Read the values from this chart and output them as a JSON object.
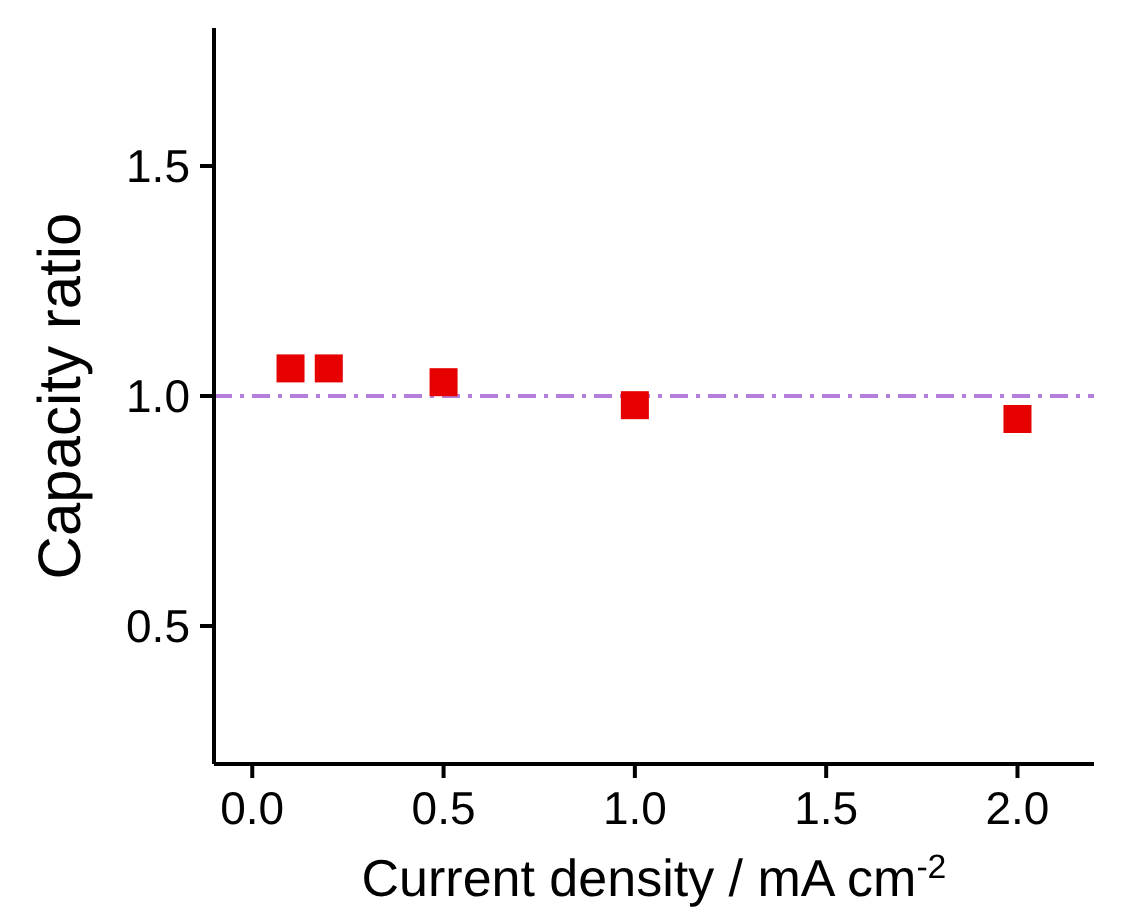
{
  "chart_data": {
    "type": "scatter",
    "xlabel": "Current density / mA cm$^{-2}$",
    "ylabel": "Capacity ratio",
    "x": [
      0.1,
      0.2,
      0.5,
      1.0,
      2.0
    ],
    "series": [
      {
        "color": "#e60000",
        "values": [
          1.06,
          1.06,
          1.03,
          0.98,
          0.95
        ]
      }
    ],
    "marker": "square",
    "xlim": [
      -0.1,
      2.2
    ],
    "ylim": [
      0.2,
      1.8
    ],
    "xticks": [
      {
        "value": 0,
        "label": "0.0"
      },
      0.5,
      {
        "value": 1,
        "label": "1.0"
      },
      1.5,
      {
        "value": 2,
        "label": "2.0"
      }
    ],
    "yticks": [
      0.5,
      {
        "value": 1,
        "label": "1.0"
      },
      1.5
    ],
    "ref_lines": [
      {
        "axis": "y",
        "value": 1,
        "color": "#b57edc",
        "line_style": "dashed"
      }
    ],
    "grid": false
  }
}
